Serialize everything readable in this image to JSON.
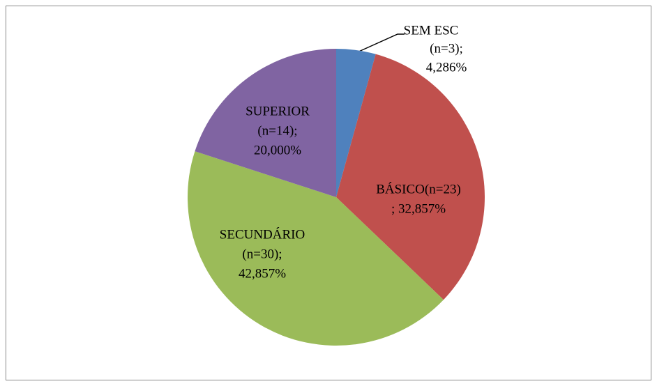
{
  "chart_data": {
    "type": "pie",
    "values": [
      4.286,
      32.857,
      42.857,
      20
    ],
    "labels": [
      [
        "SEM ESC",
        "(n=3);",
        "4,286%"
      ],
      [
        "BÁSICO(n=23)",
        "; 32,857%"
      ],
      [
        "SECUNDÁRIO",
        "(n=30);",
        "42,857%"
      ],
      [
        "SUPERIOR",
        "(n=14);",
        "20,000%"
      ]
    ],
    "colors": [
      "#4f81bd",
      "#c0504d",
      "#9bbb59",
      "#8064a2"
    ]
  }
}
